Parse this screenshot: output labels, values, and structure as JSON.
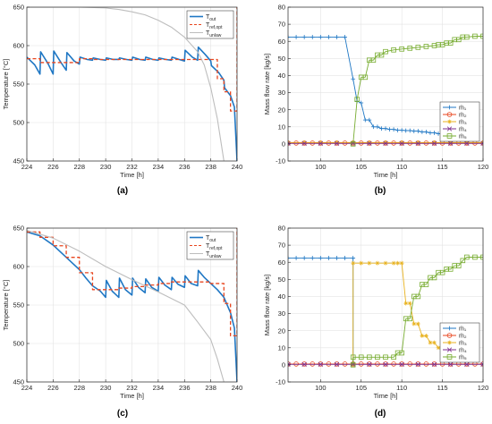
{
  "chart_data": [
    {
      "panel": "(a)",
      "type": "line",
      "xlabel": "Time [h]",
      "ylabel": "Temperature [°C]",
      "xlim": [
        224,
        240
      ],
      "ylim": [
        450,
        650
      ],
      "xticks": [
        224,
        226,
        228,
        230,
        232,
        234,
        236,
        238,
        240
      ],
      "yticks": [
        450,
        500,
        550,
        600,
        650
      ],
      "grid": true,
      "legend": "top-right",
      "series": [
        {
          "name": "T_out",
          "color": "#1f77c4",
          "style": "solid",
          "x": [
            224,
            224.6,
            225,
            225.05,
            225.6,
            226,
            226.05,
            226.6,
            227,
            227.05,
            227.6,
            228,
            228.05,
            228.6,
            229,
            229.05,
            229.6,
            230,
            230.05,
            230.6,
            231,
            231.05,
            231.6,
            232,
            232.05,
            232.6,
            233,
            233.05,
            233.6,
            234,
            234.05,
            234.6,
            235,
            235.05,
            235.6,
            236,
            236.05,
            236.6,
            237,
            237.05,
            237.6,
            238,
            238.05,
            238.6,
            239,
            239.05,
            239.5,
            239.8,
            240
          ],
          "y": [
            585,
            575,
            563,
            592,
            577,
            563,
            593,
            578,
            568,
            591,
            580,
            576,
            585,
            582,
            581,
            584,
            582,
            581,
            584,
            582,
            582,
            584,
            582,
            581,
            585,
            582,
            581,
            585,
            582,
            581,
            584,
            582,
            581,
            585,
            582,
            580,
            594,
            585,
            581,
            598,
            588,
            580,
            574,
            565,
            555,
            545,
            535,
            520,
            450
          ]
        },
        {
          "name": "T_ref,opt",
          "color": "#e8461f",
          "style": "dashed",
          "x": [
            224,
            225,
            225,
            226,
            226,
            227,
            227,
            228,
            228,
            229,
            229,
            230,
            230,
            231,
            231,
            232,
            232,
            233,
            233,
            234,
            234,
            235,
            235,
            236,
            236,
            237,
            237,
            238,
            238,
            238.5,
            238.5,
            239,
            239,
            239.5,
            239.5,
            240,
            240
          ],
          "y": [
            583,
            583,
            578,
            578,
            578,
            578,
            578,
            578,
            583,
            583,
            582,
            582,
            582,
            582,
            582,
            582,
            582,
            582,
            582,
            582,
            582,
            582,
            582,
            582,
            582,
            582,
            582,
            582,
            582,
            582,
            557,
            557,
            540,
            540,
            515,
            515,
            650
          ]
        },
        {
          "name": "T_unlaw",
          "color": "#bdbdbd",
          "style": "solid",
          "x": [
            224,
            226,
            228,
            230,
            231,
            232,
            233,
            234,
            235,
            236,
            237,
            237.5,
            238,
            238.5,
            239
          ],
          "y": [
            650,
            650,
            650,
            649,
            647,
            644,
            640,
            633,
            624,
            611,
            592,
            575,
            545,
            505,
            450
          ]
        }
      ]
    },
    {
      "panel": "(b)",
      "type": "line",
      "xlabel": "Time [h]",
      "ylabel": "Mass flow rate [kg/s]",
      "xlim": [
        96,
        120
      ],
      "ylim": [
        -10,
        80
      ],
      "xticks": [
        100,
        105,
        110,
        115,
        120
      ],
      "yticks": [
        -10,
        0,
        10,
        20,
        30,
        40,
        50,
        60,
        70,
        80
      ],
      "grid": true,
      "legend": "bottom-right",
      "series": [
        {
          "name": "ṁ₁",
          "color": "#1f77c4",
          "marker": "plus",
          "x": [
            96,
            97,
            98,
            99,
            100,
            101,
            102,
            103,
            104,
            104.5,
            105,
            105.5,
            106,
            106.5,
            107,
            107.5,
            108,
            108.5,
            109,
            109.5,
            110,
            110.5,
            111,
            111.5,
            112,
            112.5,
            113,
            113.5,
            114,
            114.5,
            115,
            115.5
          ],
          "y": [
            62.5,
            62.5,
            62.5,
            62.5,
            62.5,
            62.5,
            62.5,
            62.5,
            38,
            25,
            24,
            14,
            14,
            10,
            10,
            9,
            9,
            8.5,
            8.5,
            8,
            8,
            7.8,
            7.8,
            7.5,
            7.5,
            7,
            7,
            6.5,
            6.5,
            6,
            6,
            5.5
          ]
        },
        {
          "name": "ṁ₂",
          "color": "#e8461f",
          "marker": "circle",
          "x": [
            96,
            97,
            98,
            99,
            100,
            101,
            102,
            103,
            104,
            105,
            106,
            107,
            108,
            109,
            110,
            111,
            112,
            113,
            114,
            115,
            116,
            117,
            118,
            119,
            120
          ],
          "y": [
            0.5,
            0.5,
            0.5,
            0.5,
            0.5,
            0.5,
            0.5,
            0.5,
            0.5,
            0.5,
            0.5,
            0.5,
            0.5,
            0.5,
            0.5,
            0.5,
            0.5,
            0.5,
            0.5,
            0.5,
            0.5,
            0.5,
            0.5,
            0.5,
            0.5
          ]
        },
        {
          "name": "ṁ₃",
          "color": "#e8b21f",
          "marker": "asterisk",
          "x": [
            96,
            98,
            100,
            102,
            104,
            106,
            108,
            110,
            112,
            114,
            116,
            118,
            120
          ],
          "y": [
            0.8,
            0.8,
            0.8,
            0.8,
            0.8,
            0.8,
            0.8,
            0.8,
            0.8,
            0.8,
            0.8,
            0.8,
            0.8
          ]
        },
        {
          "name": "ṁ₄",
          "color": "#7e2f8e",
          "marker": "cross",
          "x": [
            96,
            98,
            100,
            102,
            104,
            106,
            108,
            110,
            112,
            114,
            116,
            118,
            120
          ],
          "y": [
            0.3,
            0.3,
            0.3,
            0.3,
            0.3,
            0.3,
            0.3,
            0.3,
            0.3,
            0.3,
            0.3,
            0.3,
            0.3
          ]
        },
        {
          "name": "ṁ₅",
          "color": "#77ac30",
          "marker": "square",
          "x": [
            104,
            104.5,
            105,
            105.5,
            106,
            106.5,
            107,
            107.5,
            108,
            109,
            110,
            111,
            112,
            113,
            114,
            114.5,
            115,
            115.5,
            116,
            116.5,
            117,
            117.5,
            118,
            119,
            120
          ],
          "y": [
            0,
            26,
            39,
            39,
            49,
            49,
            52,
            52,
            54,
            55,
            55.5,
            56,
            56.5,
            57,
            57.5,
            58,
            58,
            59,
            59,
            61,
            61,
            62.5,
            62.5,
            63,
            63
          ]
        }
      ]
    },
    {
      "panel": "(c)",
      "type": "line",
      "xlabel": "Time [h]",
      "ylabel": "Temperature [°C]",
      "xlim": [
        224,
        240
      ],
      "ylim": [
        450,
        650
      ],
      "xticks": [
        224,
        226,
        228,
        230,
        232,
        234,
        236,
        238,
        240
      ],
      "yticks": [
        450,
        500,
        550,
        600,
        650
      ],
      "grid": true,
      "legend": "top-right",
      "series": [
        {
          "name": "T_out",
          "color": "#1f77c4",
          "style": "solid",
          "x": [
            224,
            225,
            226,
            227,
            228,
            228.5,
            229,
            229.6,
            230,
            230.05,
            230.5,
            231,
            231.05,
            231.5,
            232,
            232.05,
            232.5,
            233,
            233.05,
            233.5,
            234,
            234.05,
            234.5,
            235,
            235.05,
            235.5,
            236,
            236.05,
            236.5,
            237,
            237.05,
            237.5,
            238,
            238.5,
            239,
            239.5,
            239.8,
            240
          ],
          "y": [
            645,
            640,
            628,
            612,
            596,
            585,
            575,
            568,
            560,
            582,
            568,
            560,
            585,
            570,
            563,
            585,
            573,
            566,
            584,
            573,
            568,
            586,
            576,
            570,
            586,
            577,
            573,
            588,
            578,
            575,
            595,
            586,
            578,
            570,
            560,
            540,
            520,
            450
          ]
        },
        {
          "name": "T_ref,opt",
          "color": "#e8461f",
          "style": "dashed",
          "x": [
            224,
            225,
            225,
            226,
            226,
            227,
            227,
            228,
            228,
            229,
            229,
            230,
            230,
            231,
            231,
            232,
            232,
            233,
            233,
            234,
            234,
            235,
            235,
            236,
            236,
            237,
            237,
            238,
            238,
            239,
            239,
            239.5,
            239.5,
            240,
            240
          ],
          "y": [
            645,
            645,
            638,
            638,
            627,
            627,
            612,
            612,
            592,
            592,
            570,
            570,
            570,
            570,
            572,
            572,
            574,
            574,
            576,
            576,
            578,
            578,
            580,
            580,
            580,
            580,
            580,
            580,
            578,
            578,
            552,
            552,
            510,
            510,
            650
          ]
        },
        {
          "name": "T_unlaw",
          "color": "#bdbdbd",
          "style": "solid",
          "x": [
            224,
            226,
            228,
            230,
            232,
            234,
            236,
            237,
            238,
            238.5,
            239
          ],
          "y": [
            647,
            637,
            620,
            600,
            583,
            567,
            550,
            528,
            505,
            480,
            450
          ]
        }
      ]
    },
    {
      "panel": "(d)",
      "type": "line",
      "xlabel": "Time [h]",
      "ylabel": "Mass flow rate [kg/s]",
      "xlim": [
        96,
        120
      ],
      "ylim": [
        -10,
        80
      ],
      "xticks": [
        100,
        105,
        110,
        115,
        120
      ],
      "yticks": [
        -10,
        0,
        10,
        20,
        30,
        40,
        50,
        60,
        70,
        80
      ],
      "grid": true,
      "legend": "bottom-right",
      "series": [
        {
          "name": "ṁ₁",
          "color": "#1f77c4",
          "marker": "plus",
          "x": [
            96,
            97,
            98,
            99,
            100,
            101,
            102,
            103,
            104,
            104.01
          ],
          "y": [
            62.5,
            62.5,
            62.5,
            62.5,
            62.5,
            62.5,
            62.5,
            62.5,
            62.5,
            0
          ]
        },
        {
          "name": "ṁ₂",
          "color": "#e8461f",
          "marker": "circle",
          "x": [
            96,
            97,
            98,
            99,
            100,
            101,
            102,
            103,
            104,
            105,
            106,
            107,
            108,
            109,
            110,
            111,
            112,
            113,
            114,
            115,
            116,
            117,
            118,
            119,
            120
          ],
          "y": [
            0.5,
            0.5,
            0.5,
            0.5,
            0.5,
            0.5,
            0.5,
            0.5,
            0.5,
            0.5,
            0.5,
            0.5,
            0.5,
            0.5,
            0.5,
            0.5,
            0.5,
            0.5,
            0.5,
            0.5,
            0.5,
            0.5,
            0.5,
            0.5,
            0.5
          ]
        },
        {
          "name": "ṁ₃",
          "color": "#e8b21f",
          "marker": "asterisk",
          "x": [
            104,
            104.01,
            105,
            106,
            107,
            108,
            109,
            109.5,
            110,
            110.5,
            111,
            111.5,
            112,
            112.5,
            113,
            113.5,
            114,
            114.5,
            115,
            115.5
          ],
          "y": [
            0,
            59.5,
            59.5,
            59.5,
            59.5,
            59.5,
            59.5,
            59.5,
            59.5,
            36,
            36,
            24,
            24,
            17,
            17,
            13,
            13,
            10,
            10,
            8
          ]
        },
        {
          "name": "ṁ₄",
          "color": "#7e2f8e",
          "marker": "cross",
          "x": [
            96,
            98,
            100,
            102,
            104,
            106,
            108,
            110,
            112,
            114,
            116,
            118,
            120
          ],
          "y": [
            0.3,
            0.3,
            0.3,
            0.3,
            0.3,
            0.3,
            0.3,
            0.3,
            0.3,
            0.3,
            0.3,
            0.3,
            0.3
          ]
        },
        {
          "name": "ṁ₅",
          "color": "#77ac30",
          "marker": "square",
          "x": [
            104,
            104.01,
            105,
            106,
            107,
            108,
            109,
            109.5,
            110,
            110.5,
            111,
            111.5,
            112,
            112.5,
            113,
            113.5,
            114,
            114.5,
            115,
            115.5,
            116,
            116.5,
            117,
            117.5,
            118,
            119,
            120
          ],
          "y": [
            0,
            4.5,
            4.5,
            4.5,
            4.5,
            4.5,
            4.5,
            7,
            7,
            27,
            27,
            40,
            40,
            47,
            47,
            51,
            51,
            54,
            54,
            56,
            56,
            58,
            58,
            61,
            63,
            63,
            63
          ]
        }
      ]
    }
  ]
}
